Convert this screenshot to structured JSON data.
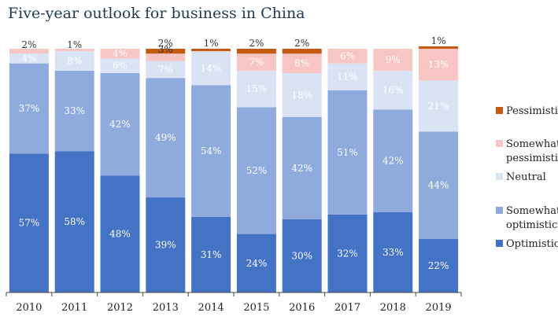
{
  "chart_data": {
    "type": "bar",
    "stacked": true,
    "title": "Five-year outlook for business in China",
    "categories": [
      "2010",
      "2011",
      "2012",
      "2013",
      "2014",
      "2015",
      "2016",
      "2017",
      "2018",
      "2019"
    ],
    "series": [
      {
        "name": "Optimistic",
        "color": "#4472c4",
        "values": [
          57,
          58,
          48,
          39,
          31,
          24,
          30,
          32,
          33,
          22
        ]
      },
      {
        "name": "Somewhat optimistic",
        "color": "#8faadc",
        "values": [
          37,
          33,
          42,
          49,
          54,
          52,
          42,
          51,
          42,
          44
        ]
      },
      {
        "name": "Neutral",
        "color": "#dae3f3",
        "values": [
          4,
          8,
          6,
          7,
          14,
          15,
          18,
          11,
          16,
          21
        ]
      },
      {
        "name": "Somewhat pessimistic",
        "color": "#f8c5c5",
        "values": [
          2,
          1,
          4,
          3,
          0,
          7,
          8,
          6,
          9,
          13
        ]
      },
      {
        "name": "Pessimistic",
        "color": "#c55a11",
        "values": [
          0,
          0,
          0,
          2,
          1,
          2,
          2,
          0,
          0,
          1
        ]
      }
    ],
    "data_labels": [
      [
        "57%",
        "58%",
        "48%",
        "39%",
        "31%",
        "24%",
        "30%",
        "32%",
        "33%",
        "22%"
      ],
      [
        "37%",
        "33%",
        "42%",
        "49%",
        "54%",
        "52%",
        "42%",
        "51%",
        "42%",
        "44%"
      ],
      [
        "4%",
        "8%",
        "6%",
        "7%",
        "14%",
        "15%",
        "18%",
        "11%",
        "16%",
        "21%"
      ],
      [
        "2%",
        "1%",
        "4%",
        "3%",
        "",
        "7%",
        "8%",
        "6%",
        "9%",
        "13%"
      ],
      [
        "",
        "",
        "",
        "2%",
        "1%",
        "2%",
        "2%",
        "",
        "",
        "1%"
      ]
    ],
    "ylim": [
      0,
      100
    ],
    "legend_order": [
      "Pessimistic",
      "Somewhat pessimistic",
      "Neutral",
      "Somewhat optimistic",
      "Optimistic"
    ],
    "legend_labels": {
      "Pessimistic": [
        "Pessimistic"
      ],
      "Somewhat pessimistic": [
        "Somewhat",
        "pessimistic"
      ],
      "Neutral": [
        "Neutral"
      ],
      "Somewhat optimistic": [
        "Somewhat",
        "optimistic"
      ],
      "Optimistic": [
        "Optimistic"
      ]
    },
    "legend_position": "right"
  }
}
